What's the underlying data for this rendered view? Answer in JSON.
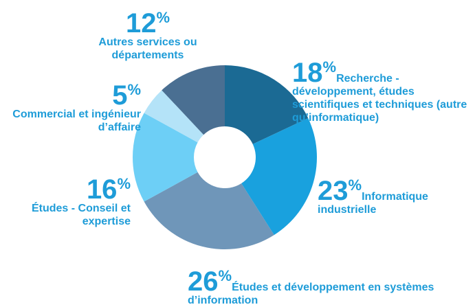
{
  "chart_data": {
    "type": "donut",
    "categories": [
      "Recherche - développement, études scientifiques et techniques (autre qu’informatique)",
      "Informatique industrielle",
      "Études et développement en systèmes d’information",
      "Études - Conseil et expertise",
      "Commercial et ingénieur d’affaire",
      "Autres services ou départements"
    ],
    "values": [
      18,
      23,
      26,
      16,
      5,
      12
    ],
    "value_labels": [
      "18%",
      "23%",
      "26%",
      "16%",
      "5%",
      "12%"
    ],
    "colors": [
      "#1b6a94",
      "#19a1de",
      "#6f96b9",
      "#6dcff6",
      "#b4e3f8",
      "#4a6f92"
    ],
    "label_color": "#1e9cd8"
  }
}
